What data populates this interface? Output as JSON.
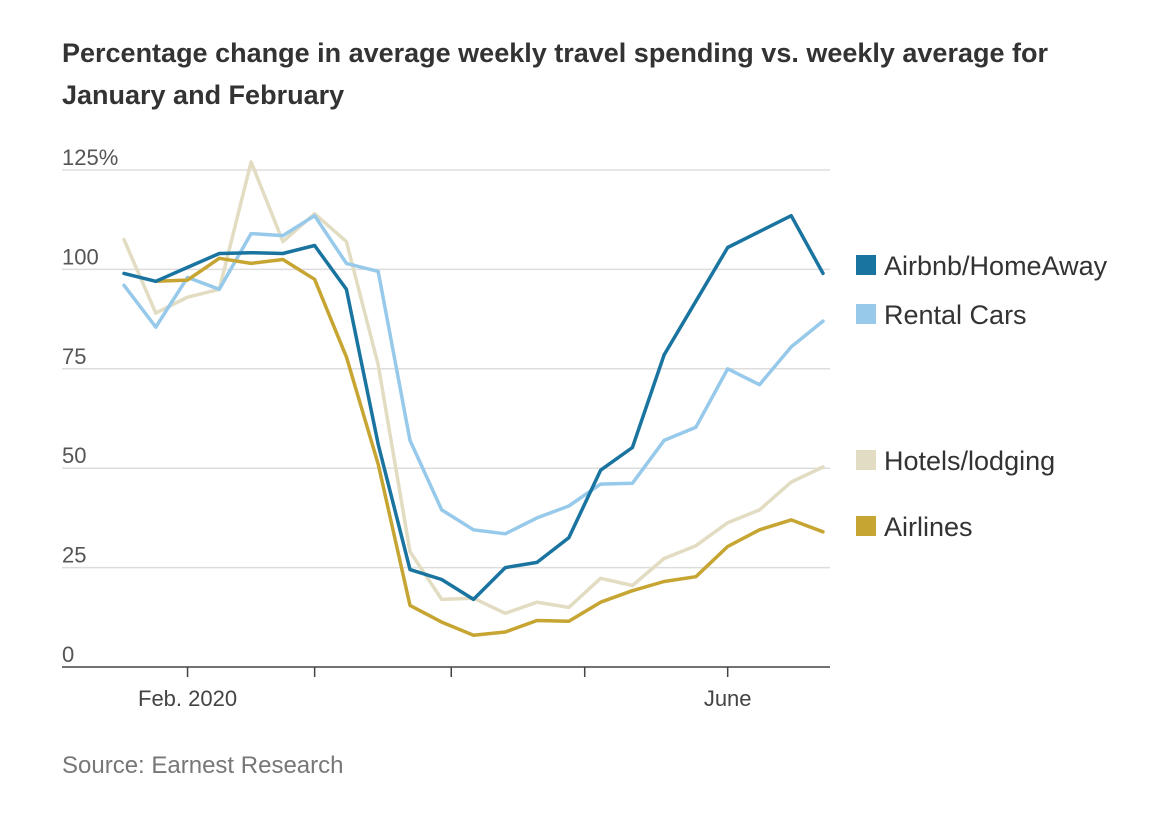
{
  "title": "Percentage change in average weekly travel spending vs. weekly average for January and February",
  "source": "Source: Earnest Research",
  "colors": {
    "airbnb": "#1a74a0",
    "rental": "#97c9ea",
    "hotels": "#e2dcc2",
    "airlines": "#c6a533",
    "grid": "#dddddd",
    "axis": "#444444"
  },
  "chart_data": {
    "type": "line",
    "title": "Percentage change in average weekly travel spending vs. weekly average for January and February",
    "xlabel": "",
    "ylabel": "",
    "ylim": [
      0,
      125
    ],
    "yticks": [
      0,
      25,
      50,
      75,
      100,
      125
    ],
    "ytick_labels": [
      "0",
      "25",
      "50",
      "75",
      "100",
      "125%"
    ],
    "x_labels": [
      {
        "label": "Feb. 2020",
        "week": 2
      },
      {
        "label": "June",
        "week": 19
      }
    ],
    "x_major_ticks": [
      2,
      6,
      10.3,
      14.5,
      19
    ],
    "n_weeks": 22,
    "grid": true,
    "legend_position": "right",
    "series": [
      {
        "name": "Airbnb/HomeAway",
        "color_key": "airbnb",
        "values": [
          99,
          97,
          100.5,
          104,
          104.2,
          104,
          106,
          95,
          56,
          24.5,
          22,
          17,
          25,
          26.3,
          32.5,
          49.5,
          55.2,
          78.5,
          92,
          105.5,
          109.5,
          113.5,
          99
        ]
      },
      {
        "name": "Rental Cars",
        "color_key": "rental",
        "values": [
          96,
          85.5,
          98,
          95,
          109,
          108.5,
          113.5,
          101.5,
          99.5,
          57,
          39.5,
          34.5,
          33.5,
          37.5,
          40.5,
          46,
          46.2,
          57,
          60.3,
          75,
          71,
          80.5,
          87
        ]
      },
      {
        "name": "Hotels/lodging",
        "color_key": "hotels",
        "values": [
          107.5,
          89,
          93,
          95,
          127,
          107,
          114,
          107,
          76,
          29,
          17,
          17.3,
          13.5,
          16.3,
          15,
          22.3,
          20.5,
          27.3,
          30.5,
          36.3,
          39.5,
          46.5,
          50.3
        ]
      },
      {
        "name": "Airlines",
        "color_key": "airlines",
        "values": [
          null,
          97,
          97.3,
          102.8,
          101.5,
          102.5,
          97.5,
          78,
          51,
          15.5,
          11.3,
          8,
          8.8,
          11.7,
          11.5,
          16.3,
          19.2,
          21.5,
          22.7,
          30.3,
          34.5,
          37,
          34
        ]
      }
    ]
  }
}
